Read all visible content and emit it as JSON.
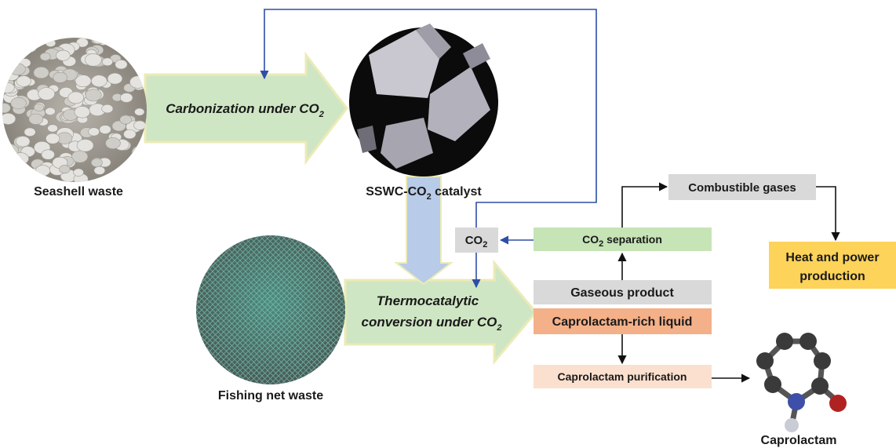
{
  "steps": {
    "seashell": "Seashell waste",
    "carbonization": {
      "text": "Carbonization under CO",
      "sub": "2"
    },
    "catalyst": {
      "text": "SSWC-CO",
      "sub": "2",
      "tail": " catalyst"
    },
    "fishing_net": "Fishing net waste",
    "thermocatalytic": {
      "line1": "Thermocatalytic",
      "line2": "conversion under CO",
      "sub": "2"
    },
    "co2": {
      "text": "CO",
      "sub": "2"
    },
    "co2_separation": {
      "text": "CO",
      "sub": "2",
      "tail": " separation"
    },
    "combustible": "Combustible gases",
    "heat_power": {
      "line1": "Heat and power",
      "line2": "production"
    },
    "gaseous": "Gaseous product",
    "liquid": "Caprolactam-rich liquid",
    "purification": "Caprolactam purification",
    "caprolactam": "Caprolactam"
  }
}
